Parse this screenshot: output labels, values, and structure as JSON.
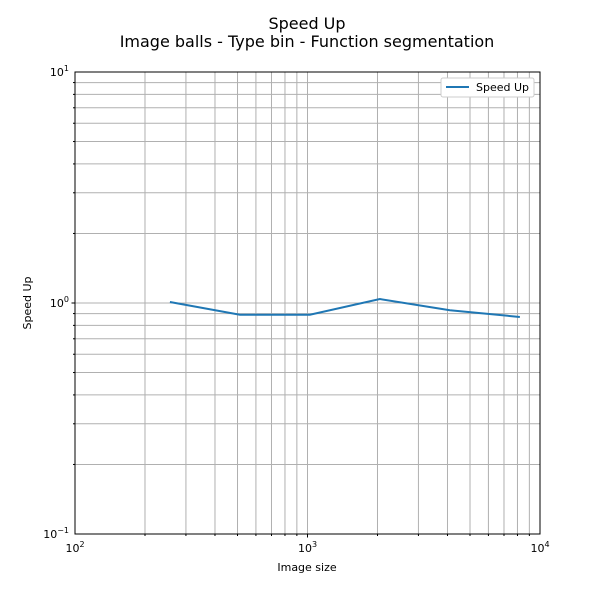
{
  "chart_data": {
    "type": "line",
    "title": "Speed Up",
    "subtitle": "Image balls - Type bin - Function segmentation",
    "xlabel": "Image size",
    "ylabel": "Speed Up",
    "xscale": "log",
    "yscale": "log",
    "xlim": [
      100,
      10000
    ],
    "ylim": [
      0.1,
      10
    ],
    "xticks": [
      {
        "value": 100,
        "base": "10",
        "exp": "2"
      },
      {
        "value": 1000,
        "base": "10",
        "exp": "3"
      },
      {
        "value": 10000,
        "base": "10",
        "exp": "4"
      }
    ],
    "yticks": [
      {
        "value": 0.1,
        "base": "10",
        "exp": "−1"
      },
      {
        "value": 1,
        "base": "10",
        "exp": "0"
      },
      {
        "value": 10,
        "base": "10",
        "exp": "1"
      }
    ],
    "grid": true,
    "legend_position": "top-right",
    "series": [
      {
        "name": "Speed Up",
        "color": "#1f77b4",
        "x": [
          256,
          512,
          1024,
          2048,
          4096,
          8192
        ],
        "y": [
          1.01,
          0.89,
          0.89,
          1.04,
          0.93,
          0.87
        ]
      }
    ]
  }
}
